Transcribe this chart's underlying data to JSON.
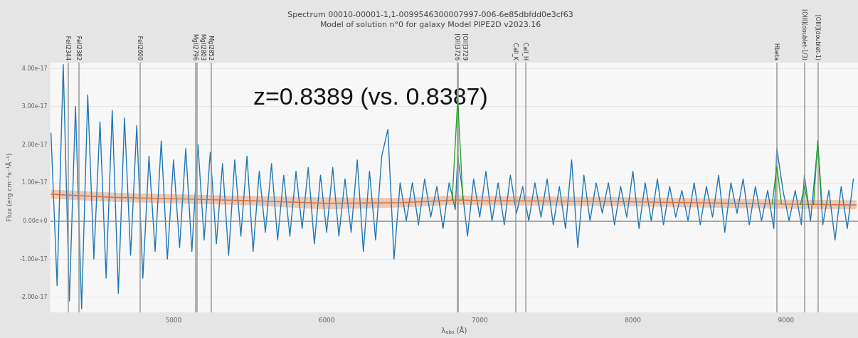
{
  "chart_data": {
    "type": "line",
    "title": "Spectrum 00010-00001-1,1-0099546300007997-006-6e85dbfdd0e3cf63",
    "subtitle": "Model of solution n°0 for galaxy Model PIPE2D v2023.16",
    "xlabel": "λ$_{obs}$ (Å)",
    "ylabel": "Flux (erg cm⁻²s⁻¹Å⁻¹)",
    "annotations": [
      "z=0.8389 (vs. 0.8387)"
    ],
    "xlim": [
      4195,
      9470
    ],
    "xticks": [
      5000,
      6000,
      7000,
      8000,
      9000
    ],
    "ylim": [
      -2.4e-17,
      4.15e-17
    ],
    "yticks": [
      {
        "value": -2e-17,
        "label": "-2.00e-17"
      },
      {
        "value": -1e-17,
        "label": "-1.00e-17"
      },
      {
        "value": 0,
        "label": "0.00e+0"
      },
      {
        "value": 1e-17,
        "label": "1.00e-17"
      },
      {
        "value": 2e-17,
        "label": "2.00e-17"
      },
      {
        "value": 3e-17,
        "label": "3.00e-17"
      },
      {
        "value": 4e-17,
        "label": "4.00e-17"
      }
    ],
    "grid": "y",
    "marker": "none",
    "line_style": "solid",
    "series": [
      {
        "color": "#1f77b4",
        "x": [
          4200,
          4240,
          4280,
          4320,
          4360,
          4400,
          4440,
          4480,
          4520,
          4560,
          4600,
          4640,
          4680,
          4720,
          4760,
          4800,
          4840,
          4880,
          4920,
          4960,
          5000,
          5040,
          5080,
          5120,
          5160,
          5200,
          5240,
          5280,
          5320,
          5360,
          5400,
          5440,
          5480,
          5520,
          5560,
          5600,
          5640,
          5680,
          5720,
          5760,
          5800,
          5840,
          5880,
          5920,
          5960,
          6000,
          6040,
          6080,
          6120,
          6160,
          6200,
          6240,
          6280,
          6320,
          6360,
          6400,
          6440,
          6480,
          6520,
          6560,
          6600,
          6640,
          6680,
          6720,
          6760,
          6800,
          6840,
          6856,
          6880,
          6920,
          6960,
          7000,
          7040,
          7080,
          7120,
          7160,
          7200,
          7240,
          7280,
          7320,
          7360,
          7400,
          7440,
          7480,
          7520,
          7560,
          7600,
          7640,
          7680,
          7720,
          7760,
          7800,
          7840,
          7880,
          7920,
          7960,
          8000,
          8040,
          8080,
          8120,
          8160,
          8200,
          8240,
          8280,
          8320,
          8360,
          8400,
          8440,
          8480,
          8520,
          8560,
          8600,
          8640,
          8680,
          8720,
          8760,
          8800,
          8840,
          8880,
          8920,
          8940,
          8980,
          9020,
          9060,
          9100,
          9120,
          9160,
          9207,
          9240,
          9280,
          9320,
          9360,
          9400,
          9440
        ],
        "values": [
          2.3e-17,
          -1.7e-17,
          4.1e-17,
          -2.1e-17,
          3e-17,
          -2.3e-17,
          3.3e-17,
          -1e-17,
          2.6e-17,
          -1.5e-17,
          2.9e-17,
          -1.9e-17,
          2.7e-17,
          -9e-18,
          2.5e-17,
          -1.5e-17,
          1.7e-17,
          -8e-18,
          2.1e-17,
          -1e-17,
          1.6e-17,
          -7e-18,
          1.9e-17,
          -8e-18,
          2e-17,
          -5e-18,
          1.8e-17,
          -6e-18,
          1.5e-17,
          -9e-18,
          1.6e-17,
          -4e-18,
          1.7e-17,
          -8e-18,
          1.3e-17,
          -3e-18,
          1.5e-17,
          -5e-18,
          1.2e-17,
          -4e-18,
          1.3e-17,
          -2e-18,
          1.4e-17,
          -6e-18,
          1.2e-17,
          -3e-18,
          1.4e-17,
          -4e-18,
          1.1e-17,
          -3e-18,
          1.6e-17,
          -8e-18,
          1.3e-17,
          -5e-18,
          1.7e-17,
          2.4e-17,
          -1e-17,
          1e-17,
          0,
          1e-17,
          -1e-18,
          1.1e-17,
          1e-18,
          9e-18,
          -2e-18,
          1e-17,
          3e-18,
          1.7e-17,
          1e-17,
          -4e-18,
          1.1e-17,
          1e-18,
          1.3e-17,
          0,
          1e-17,
          -1e-18,
          1.2e-17,
          2e-18,
          9e-18,
          0,
          1e-17,
          1e-18,
          1.1e-17,
          -1e-18,
          9e-18,
          -2e-18,
          1.6e-17,
          -7e-18,
          1.2e-17,
          0,
          1e-17,
          2e-18,
          1e-17,
          -1e-18,
          9e-18,
          1e-18,
          1.3e-17,
          -2e-18,
          1e-17,
          0,
          1.1e-17,
          -1e-18,
          9e-18,
          1e-18,
          8e-18,
          0,
          1e-17,
          -1e-18,
          9e-18,
          1e-18,
          1.2e-17,
          -3e-18,
          1e-17,
          2e-18,
          1.1e-17,
          -1e-18,
          9e-18,
          0,
          8e-18,
          -2e-18,
          1.9e-17,
          8e-18,
          0,
          8e-18,
          -1e-18,
          1.2e-17,
          0,
          2e-17,
          -1e-18,
          8e-18,
          -5e-18,
          9e-18,
          -2e-18,
          1.1e-17
        ]
      },
      {
        "color": "#d9713a",
        "x": [
          4200,
          4600,
          5000,
          5500,
          6000,
          6500,
          6856,
          7000,
          7500,
          8000,
          8500,
          9000,
          9460
        ],
        "values": [
          7e-18,
          6.2e-18,
          5.8e-18,
          5.3e-18,
          4.6e-18,
          4.8e-18,
          5.5e-18,
          5.3e-18,
          5.2e-18,
          5e-18,
          4.7e-18,
          4.4e-18,
          4.2e-18
        ],
        "lower": [
          5.8e-18,
          5e-18,
          4.6e-18,
          4.1e-18,
          3e-18,
          3.6e-18,
          4.3e-18,
          4.1e-18,
          4e-18,
          3.8e-18,
          3.5e-18,
          3.2e-18,
          3e-18
        ],
        "upper": [
          8.2e-18,
          7.4e-18,
          7e-18,
          6.5e-18,
          6.2e-18,
          6e-18,
          6.7e-18,
          6.5e-18,
          6.4e-18,
          6.2e-18,
          5.9e-18,
          5.6e-18,
          5.4e-18
        ]
      },
      {
        "color": "#2ca02c",
        "x": [
          6820,
          6856,
          6890,
          7500,
          8910,
          8940,
          8970,
          9030,
          9095,
          9119,
          9145,
          9160,
          9180,
          9207,
          9235
        ],
        "values": [
          5.5e-18,
          3.2e-17,
          5.5e-18,
          null,
          4.5e-18,
          1.43e-17,
          4.5e-18,
          null,
          4.3e-18,
          9e-18,
          4.3e-18,
          null,
          4.3e-18,
          2.1e-17,
          4.3e-18
        ]
      }
    ],
    "ref_lines": [
      {
        "axis": "y",
        "value": 0,
        "color": "#8c8c8c"
      },
      {
        "axis": "x",
        "value": 4311,
        "label": "FeII2344",
        "color": "#999999"
      },
      {
        "axis": "x",
        "value": 4381,
        "label": "FeII2382",
        "color": "#999999"
      },
      {
        "axis": "x",
        "value": 4781,
        "label": "FeII2600",
        "color": "#999999"
      },
      {
        "axis": "x",
        "value": 5142,
        "label": "MgII2796",
        "color": "#999999"
      },
      {
        "axis": "x",
        "value": 5155,
        "label": "MgII2803",
        "color": "#999999"
      },
      {
        "axis": "x",
        "value": 5245,
        "label": "MgI2852",
        "color": "#999999"
      },
      {
        "axis": "x",
        "value": 6852,
        "label": "[OII]3726",
        "color": "#999999"
      },
      {
        "axis": "x",
        "value": 6857,
        "label": "[OII]3729",
        "color": "#999999"
      },
      {
        "axis": "x",
        "value": 7234,
        "label": "CaII_K",
        "color": "#999999"
      },
      {
        "axis": "x",
        "value": 7299,
        "label": "CaII_H",
        "color": "#999999"
      },
      {
        "axis": "x",
        "value": 8940,
        "label": "Hbeta",
        "color": "#999999"
      },
      {
        "axis": "x",
        "value": 9119,
        "label": "[OIII](doublet-1/3)",
        "color": "#999999"
      },
      {
        "axis": "x",
        "value": 9207,
        "label": "[OIII](doublet-1)",
        "color": "#999999"
      }
    ]
  }
}
